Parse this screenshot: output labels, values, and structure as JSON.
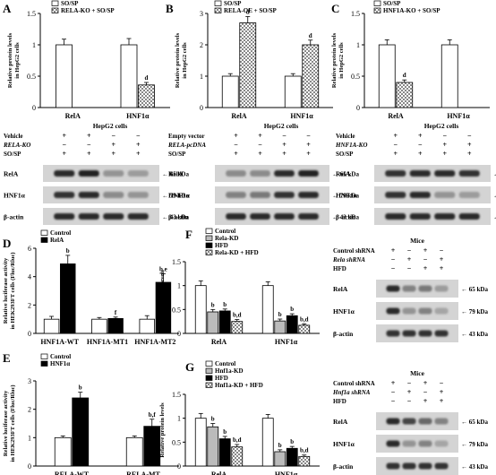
{
  "chart_data": [
    {
      "panel": "A",
      "type": "bar",
      "ylabel": "Relative protein levels in HepG2 cells",
      "ylim": [
        0,
        1.5
      ],
      "yticks": [
        "0",
        "0.5",
        "1",
        "1.5"
      ],
      "categories": [
        "RelA",
        "HNF1α"
      ],
      "series": [
        {
          "name": "SO/SP",
          "values": [
            1.0,
            1.0
          ],
          "errors": [
            0.09,
            0.1
          ],
          "marks": [
            "",
            ""
          ]
        },
        {
          "name": "RELA-KO + SO/SP",
          "values": [
            null,
            0.36
          ],
          "errors": [
            null,
            0.04
          ],
          "marks": [
            "",
            "d"
          ]
        }
      ]
    },
    {
      "panel": "B",
      "type": "bar",
      "ylabel": "Relative protein levels in HepG2 cells",
      "ylim": [
        0,
        3
      ],
      "yticks": [
        "0",
        "1",
        "2",
        "3"
      ],
      "categories": [
        "RelA",
        "HNF1α"
      ],
      "series": [
        {
          "name": "SO/SP",
          "values": [
            1.0,
            1.0
          ],
          "errors": [
            0.08,
            0.08
          ],
          "marks": [
            "",
            ""
          ]
        },
        {
          "name": "RELA-OE + SO/SP",
          "values": [
            2.7,
            2.0
          ],
          "errors": [
            0.2,
            0.15
          ],
          "marks": [
            "d",
            "d"
          ]
        }
      ]
    },
    {
      "panel": "C",
      "type": "bar",
      "ylabel": "Relative protein levels in HepG2 cells",
      "ylim": [
        0,
        1.5
      ],
      "yticks": [
        "0",
        "0.5",
        "1",
        "1.5"
      ],
      "categories": [
        "RelA",
        "HNF1α"
      ],
      "series": [
        {
          "name": "SO/SP",
          "values": [
            1.0,
            1.0
          ],
          "errors": [
            0.08,
            0.08
          ],
          "marks": [
            "",
            ""
          ]
        },
        {
          "name": "HNF1A-KO + SO/SP",
          "values": [
            0.4,
            null
          ],
          "errors": [
            0.04,
            null
          ],
          "marks": [
            "d",
            ""
          ]
        }
      ]
    },
    {
      "panel": "D",
      "type": "bar",
      "ylabel": "Relative luciferase activity in HEK293FT cells (Fluc/Rluc)",
      "ylim": [
        0,
        6
      ],
      "yticks": [
        "0",
        "2",
        "4",
        "6"
      ],
      "categories": [
        "HNF1A-WT",
        "HNF1A-MT1",
        "HNF1A-MT2"
      ],
      "series": [
        {
          "name": "Control",
          "values": [
            1.0,
            1.0,
            1.0
          ],
          "errors": [
            0.2,
            0.12,
            0.25
          ],
          "marks": [
            "",
            "",
            ""
          ]
        },
        {
          "name": "RelA",
          "values": [
            4.9,
            1.05,
            3.6
          ],
          "errors": [
            0.6,
            0.1,
            0.6
          ],
          "marks": [
            "b",
            "f",
            "b,e"
          ]
        }
      ]
    },
    {
      "panel": "E",
      "type": "bar",
      "ylabel": "Relative luciferase activity in HEK293FT cells (Fluc/Rluc)",
      "ylim": [
        0,
        3
      ],
      "yticks": [
        "0",
        "1",
        "2",
        "3"
      ],
      "categories": [
        "RELA-WT",
        "RELA-MT"
      ],
      "series": [
        {
          "name": "Control",
          "values": [
            1.0,
            1.0
          ],
          "errors": [
            0.06,
            0.06
          ],
          "marks": [
            "",
            ""
          ]
        },
        {
          "name": "HNF1α",
          "values": [
            2.4,
            1.4
          ],
          "errors": [
            0.2,
            0.25
          ],
          "marks": [
            "b",
            "b,f"
          ]
        }
      ]
    },
    {
      "panel": "F",
      "type": "bar",
      "ylabel": "Relative protein levels",
      "ylim": [
        0,
        1.5
      ],
      "yticks": [
        "0",
        "0.5",
        "1",
        "1.5"
      ],
      "categories": [
        "RelA",
        "HNF1α"
      ],
      "series": [
        {
          "name": "Control",
          "values": [
            1.0,
            1.0
          ],
          "errors": [
            0.1,
            0.08
          ],
          "marks": [
            "",
            ""
          ]
        },
        {
          "name": "Rela-KD",
          "values": [
            0.45,
            0.26
          ],
          "errors": [
            0.05,
            0.04
          ],
          "marks": [
            "b",
            "b"
          ]
        },
        {
          "name": "HFD",
          "values": [
            0.47,
            0.37
          ],
          "errors": [
            0.04,
            0.04
          ],
          "marks": [
            "b",
            "b"
          ]
        },
        {
          "name": "Rela-KD + HFD",
          "values": [
            0.25,
            0.17
          ],
          "errors": [
            0.04,
            0.03
          ],
          "marks": [
            "b,d",
            "b,d"
          ]
        }
      ]
    },
    {
      "panel": "G",
      "type": "bar",
      "ylabel": "Relative protein levels",
      "ylim": [
        0,
        1.5
      ],
      "yticks": [
        "0",
        "0.5",
        "1",
        "1.5"
      ],
      "categories": [
        "RelA",
        "HNF1α"
      ],
      "series": [
        {
          "name": "Control",
          "values": [
            1.0,
            1.0
          ],
          "errors": [
            0.1,
            0.08
          ],
          "marks": [
            "",
            ""
          ]
        },
        {
          "name": "Hnf1a-KD",
          "values": [
            0.82,
            0.3
          ],
          "errors": [
            0.07,
            0.04
          ],
          "marks": [
            "b",
            "b"
          ]
        },
        {
          "name": "HFD",
          "values": [
            0.57,
            0.37
          ],
          "errors": [
            0.05,
            0.04
          ],
          "marks": [
            "b",
            "b"
          ]
        },
        {
          "name": "Hnf1a-KD + HFD",
          "values": [
            0.4,
            0.2
          ],
          "errors": [
            0.05,
            0.03
          ],
          "marks": [
            "b,d",
            "b,d"
          ]
        }
      ]
    }
  ],
  "blots": [
    {
      "panel": "A",
      "title": "HepG2 cells",
      "conditions": [
        {
          "label": "Vehicle",
          "italic": false,
          "signs": [
            "+",
            "+",
            "−",
            "−"
          ]
        },
        {
          "label": "RELA-KO",
          "italic": true,
          "signs": [
            "−",
            "−",
            "+",
            "+"
          ]
        },
        {
          "label": "SO/SP",
          "italic": false,
          "signs": [
            "+",
            "+",
            "+",
            "+"
          ]
        }
      ],
      "rows": [
        {
          "protein": "RelA",
          "size": "65 kDa",
          "intensity": [
            0.9,
            0.95,
            0.3,
            0.25
          ]
        },
        {
          "protein": "HNF1α",
          "size": "79 kDa",
          "intensity": [
            0.85,
            0.9,
            0.35,
            0.3
          ]
        },
        {
          "protein": "β-actin",
          "size": "43 kDa",
          "intensity": [
            0.9,
            0.9,
            0.9,
            0.9
          ]
        }
      ]
    },
    {
      "panel": "B",
      "title": "HepG2 cells",
      "conditions": [
        {
          "label": "Empty vector",
          "italic": false,
          "signs": [
            "+",
            "+",
            "−",
            "−"
          ]
        },
        {
          "label": "RELA-pcDNA",
          "italic": true,
          "signs": [
            "−",
            "−",
            "+",
            "+"
          ]
        },
        {
          "label": "SO/SP",
          "italic": false,
          "signs": [
            "+",
            "+",
            "+",
            "+"
          ]
        }
      ],
      "rows": [
        {
          "protein": "RelA",
          "size": "65 kDa",
          "intensity": [
            0.35,
            0.35,
            0.9,
            0.95
          ]
        },
        {
          "protein": "HNF1α",
          "size": "79 kDa",
          "intensity": [
            0.4,
            0.45,
            0.85,
            0.9
          ]
        },
        {
          "protein": "β-actin",
          "size": "43 kDa",
          "intensity": [
            0.9,
            0.9,
            0.9,
            0.9
          ]
        }
      ]
    },
    {
      "panel": "C",
      "title": "HepG2 cells",
      "conditions": [
        {
          "label": "Vehicle",
          "italic": false,
          "signs": [
            "+",
            "+",
            "−",
            "−"
          ]
        },
        {
          "label": "HNF1A-KO",
          "italic": true,
          "signs": [
            "−",
            "−",
            "+",
            "+"
          ]
        },
        {
          "label": "SO/SP",
          "italic": false,
          "signs": [
            "+",
            "+",
            "+",
            "+"
          ]
        }
      ],
      "rows": [
        {
          "protein": "RelA",
          "size": "65 kDa",
          "intensity": [
            0.85,
            0.9,
            0.9,
            0.85
          ]
        },
        {
          "protein": "HNF1α",
          "size": "79 kDa",
          "intensity": [
            0.85,
            0.9,
            0.3,
            0.25
          ]
        },
        {
          "protein": "β-actin",
          "size": "43 kDa",
          "intensity": [
            0.9,
            0.9,
            0.9,
            0.9
          ]
        }
      ]
    },
    {
      "panel": "F",
      "title": "Mice",
      "conditions": [
        {
          "label": "Control shRNA",
          "italic": false,
          "signs": [
            "+",
            "−",
            "+",
            "−"
          ]
        },
        {
          "label": "Rela shRNA",
          "italic": true,
          "signs": [
            "−",
            "+",
            "−",
            "+"
          ]
        },
        {
          "label": "HFD",
          "italic": false,
          "signs": [
            "−",
            "−",
            "+",
            "+"
          ]
        }
      ],
      "rows": [
        {
          "protein": "RelA",
          "size": "65 kDa",
          "intensity": [
            0.9,
            0.4,
            0.45,
            0.25
          ]
        },
        {
          "protein": "HNF1α",
          "size": "79 kDa",
          "intensity": [
            0.9,
            0.3,
            0.4,
            0.2
          ]
        },
        {
          "protein": "β-actin",
          "size": "43 kDa",
          "intensity": [
            0.85,
            0.85,
            0.85,
            0.85
          ]
        }
      ]
    },
    {
      "panel": "G",
      "title": "Mice",
      "conditions": [
        {
          "label": "Control shRNA",
          "italic": false,
          "signs": [
            "+",
            "−",
            "+",
            "−"
          ]
        },
        {
          "label": "Hnf1a shRNA",
          "italic": true,
          "signs": [
            "−",
            "+",
            "−",
            "+"
          ]
        },
        {
          "label": "HFD",
          "italic": false,
          "signs": [
            "−",
            "−",
            "+",
            "+"
          ]
        }
      ],
      "rows": [
        {
          "protein": "RelA",
          "size": "65 kDa",
          "intensity": [
            0.9,
            0.75,
            0.55,
            0.4
          ]
        },
        {
          "protein": "HNF1α",
          "size": "79 kDa",
          "intensity": [
            0.9,
            0.3,
            0.4,
            0.2
          ]
        },
        {
          "protein": "β-actin",
          "size": "43 kDa",
          "intensity": [
            0.85,
            0.85,
            0.85,
            0.85
          ]
        }
      ]
    }
  ],
  "colors": {
    "series_fills": [
      "#ffffff",
      "#bbbbbb",
      "#000000",
      "checker"
    ],
    "two_series_second_fill": {
      "A": "checker",
      "B": "checker",
      "C": "checker",
      "D": "#000000",
      "E": "#000000"
    },
    "blot_bg": "#d4d4d4"
  }
}
